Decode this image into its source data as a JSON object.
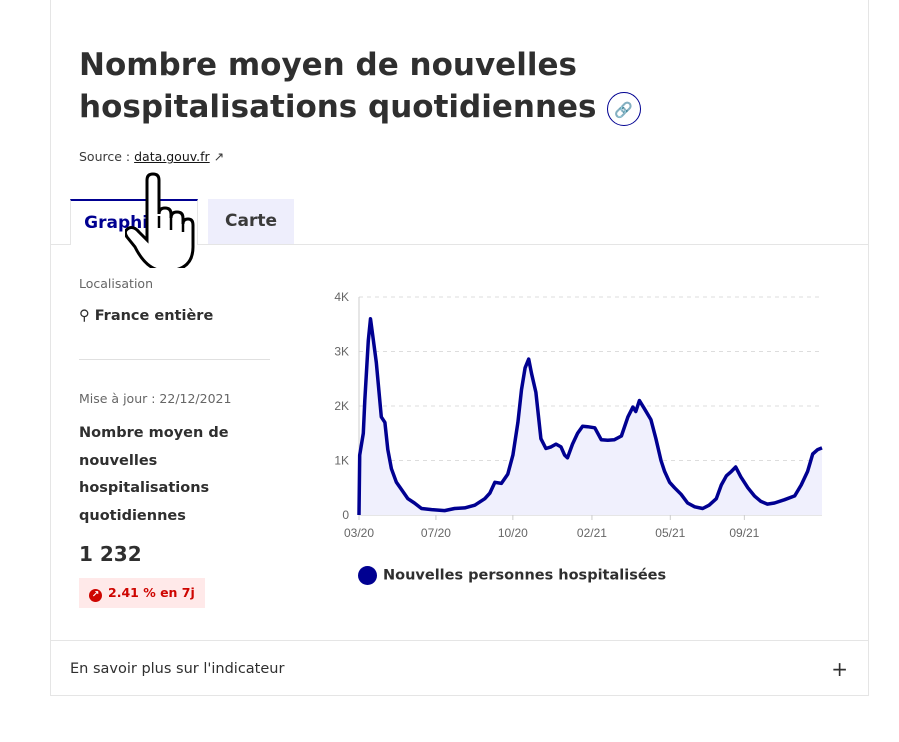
{
  "title": "Nombre moyen de nouvelles hospitalisations quotidiennes",
  "source": {
    "label": "Source :",
    "link": "data.gouv.fr"
  },
  "tabs": [
    {
      "label": "Graphique"
    },
    {
      "label": "Carte"
    }
  ],
  "sidebar": {
    "location_label": "Localisation",
    "location": "France entière",
    "updated": "Mise à jour : 22/12/2021",
    "indicator": "Nombre moyen de nouvelles hospitalisations quotidiennes",
    "value": "1 232",
    "trend": "2.41 % en 7j"
  },
  "footer": {
    "label": "En savoir plus sur l'indicateur",
    "plus": "+"
  },
  "colors": {
    "accent": "#000091",
    "trend": "#ce0500"
  },
  "chart_data": {
    "type": "area",
    "series": [
      {
        "name": "Nouvelles personnes hospitalisées",
        "color": "#000091"
      }
    ],
    "x_unit": "days since 03/20",
    "yticks": [
      {
        "v": 0,
        "label": "0"
      },
      {
        "v": 1000,
        "label": "1K"
      },
      {
        "v": 2000,
        "label": "2K"
      },
      {
        "v": 3000,
        "label": "3K"
      },
      {
        "v": 4000,
        "label": "4K"
      }
    ],
    "xticks": [
      {
        "d": 0,
        "label": "03/20"
      },
      {
        "d": 107,
        "label": "07/20"
      },
      {
        "d": 214,
        "label": "10/20"
      },
      {
        "d": 324,
        "label": "02/21"
      },
      {
        "d": 433,
        "label": "05/21"
      },
      {
        "d": 536,
        "label": "09/21"
      }
    ],
    "ylim": [
      0,
      4000
    ],
    "xlim": [
      0,
      644
    ],
    "points": [
      [
        0,
        0
      ],
      [
        1,
        1100
      ],
      [
        6,
        1500
      ],
      [
        8,
        2100
      ],
      [
        13,
        3200
      ],
      [
        16,
        3600
      ],
      [
        19,
        3300
      ],
      [
        24,
        2800
      ],
      [
        31,
        1800
      ],
      [
        36,
        1700
      ],
      [
        40,
        1200
      ],
      [
        45,
        850
      ],
      [
        52,
        600
      ],
      [
        59,
        470
      ],
      [
        68,
        300
      ],
      [
        77,
        220
      ],
      [
        87,
        120
      ],
      [
        101,
        100
      ],
      [
        119,
        80
      ],
      [
        133,
        120
      ],
      [
        147,
        130
      ],
      [
        161,
        180
      ],
      [
        175,
        300
      ],
      [
        182,
        400
      ],
      [
        189,
        600
      ],
      [
        198,
        580
      ],
      [
        207,
        750
      ],
      [
        214,
        1100
      ],
      [
        221,
        1700
      ],
      [
        226,
        2300
      ],
      [
        231,
        2700
      ],
      [
        236,
        2860
      ],
      [
        240,
        2600
      ],
      [
        246,
        2250
      ],
      [
        253,
        1400
      ],
      [
        260,
        1220
      ],
      [
        267,
        1250
      ],
      [
        274,
        1300
      ],
      [
        281,
        1250
      ],
      [
        286,
        1100
      ],
      [
        290,
        1050
      ],
      [
        297,
        1300
      ],
      [
        304,
        1500
      ],
      [
        311,
        1630
      ],
      [
        318,
        1620
      ],
      [
        328,
        1600
      ],
      [
        337,
        1380
      ],
      [
        346,
        1370
      ],
      [
        355,
        1380
      ],
      [
        365,
        1450
      ],
      [
        374,
        1800
      ],
      [
        381,
        1980
      ],
      [
        385,
        1900
      ],
      [
        390,
        2100
      ],
      [
        397,
        1950
      ],
      [
        406,
        1750
      ],
      [
        413,
        1400
      ],
      [
        420,
        1000
      ],
      [
        425,
        800
      ],
      [
        432,
        600
      ],
      [
        439,
        500
      ],
      [
        448,
        380
      ],
      [
        457,
        220
      ],
      [
        467,
        150
      ],
      [
        478,
        120
      ],
      [
        487,
        180
      ],
      [
        497,
        300
      ],
      [
        504,
        550
      ],
      [
        511,
        720
      ],
      [
        518,
        800
      ],
      [
        524,
        880
      ],
      [
        531,
        700
      ],
      [
        541,
        500
      ],
      [
        550,
        350
      ],
      [
        559,
        250
      ],
      [
        568,
        200
      ],
      [
        578,
        220
      ],
      [
        592,
        280
      ],
      [
        606,
        350
      ],
      [
        615,
        550
      ],
      [
        624,
        800
      ],
      [
        631,
        1120
      ],
      [
        638,
        1200
      ],
      [
        644,
        1232
      ]
    ]
  }
}
